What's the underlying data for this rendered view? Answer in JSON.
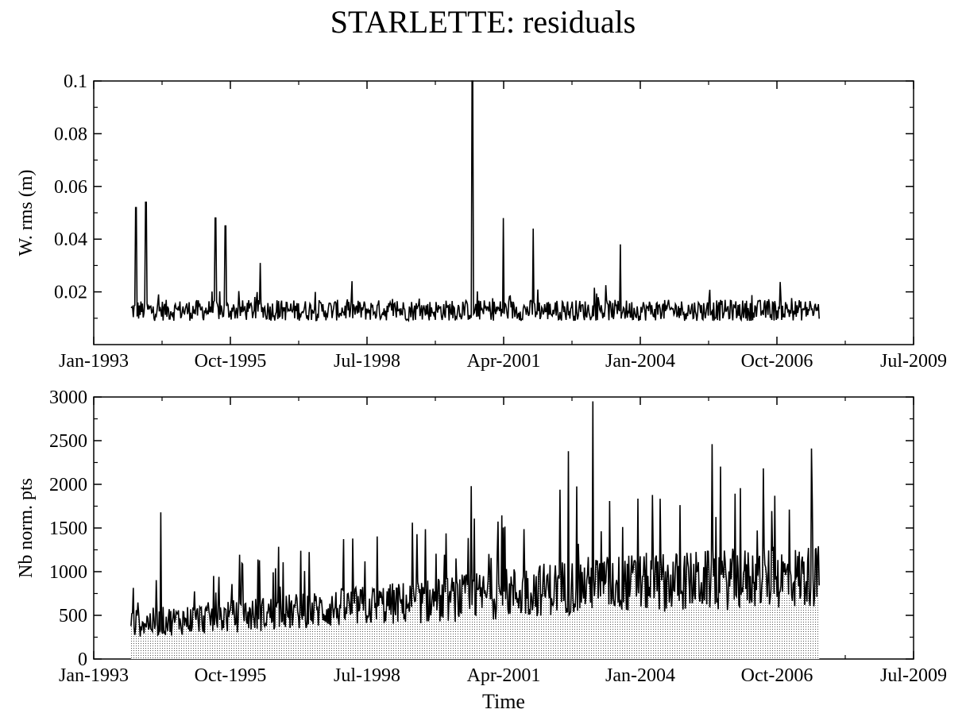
{
  "figure": {
    "title": "STARLETTE: residuals"
  },
  "chart_data": [
    {
      "type": "line",
      "title": "",
      "xlabel": "",
      "ylabel": "W. rms (m)",
      "x_tick_labels": [
        "Jan-1993",
        "Oct-1995",
        "Jul-1998",
        "Apr-2001",
        "Jan-2004",
        "Oct-2006",
        "Jul-2009"
      ],
      "x_ticks": [
        1993.0,
        1995.75,
        1998.5,
        2001.25,
        2004.0,
        2006.75,
        2009.5
      ],
      "xlim": [
        1993.0,
        2009.5
      ],
      "y_tick_labels": [
        "0.02",
        "0.04",
        "0.06",
        "0.08",
        "0.1"
      ],
      "y_ticks": [
        0.02,
        0.04,
        0.06,
        0.08,
        0.1
      ],
      "ylim": [
        0.0,
        0.1
      ],
      "grid": false,
      "baseline": 0.013,
      "x_start": 1993.75,
      "x_end": 2007.6,
      "spikes": [
        {
          "x": 1993.85,
          "y": 0.052
        },
        {
          "x": 1994.05,
          "y": 0.054
        },
        {
          "x": 1995.45,
          "y": 0.048
        },
        {
          "x": 1995.65,
          "y": 0.045
        },
        {
          "x": 1996.35,
          "y": 0.031
        },
        {
          "x": 2000.62,
          "y": 0.1
        },
        {
          "x": 2001.25,
          "y": 0.048
        },
        {
          "x": 2001.85,
          "y": 0.044
        },
        {
          "x": 2003.6,
          "y": 0.038
        }
      ]
    },
    {
      "type": "area",
      "title": "",
      "xlabel": "Time",
      "ylabel": "Nb norm. pts",
      "x_tick_labels": [
        "Jan-1993",
        "Oct-1995",
        "Jul-1998",
        "Apr-2001",
        "Jan-2004",
        "Oct-2006",
        "Jul-2009"
      ],
      "x_ticks": [
        1993.0,
        1995.75,
        1998.5,
        2001.25,
        2004.0,
        2006.75,
        2009.5
      ],
      "xlim": [
        1993.0,
        2009.5
      ],
      "y_tick_labels": [
        "0",
        "500",
        "1000",
        "1500",
        "2000",
        "2500",
        "3000"
      ],
      "y_ticks": [
        0,
        500,
        1000,
        1500,
        2000,
        2500,
        3000
      ],
      "ylim": [
        0,
        3000
      ],
      "grid": false,
      "trend": [
        {
          "x": 1993.75,
          "y": 450
        },
        {
          "x": 1997.0,
          "y": 600
        },
        {
          "x": 2000.0,
          "y": 750
        },
        {
          "x": 2003.0,
          "y": 950
        },
        {
          "x": 2007.6,
          "y": 1050
        }
      ],
      "x_start": 1993.75,
      "x_end": 2007.6,
      "peaks": [
        {
          "x": 1994.35,
          "y": 1680
        },
        {
          "x": 2000.6,
          "y": 1980
        },
        {
          "x": 2002.55,
          "y": 2380
        },
        {
          "x": 2003.05,
          "y": 2950
        },
        {
          "x": 2005.45,
          "y": 2460
        },
        {
          "x": 2007.45,
          "y": 2410
        }
      ]
    }
  ]
}
